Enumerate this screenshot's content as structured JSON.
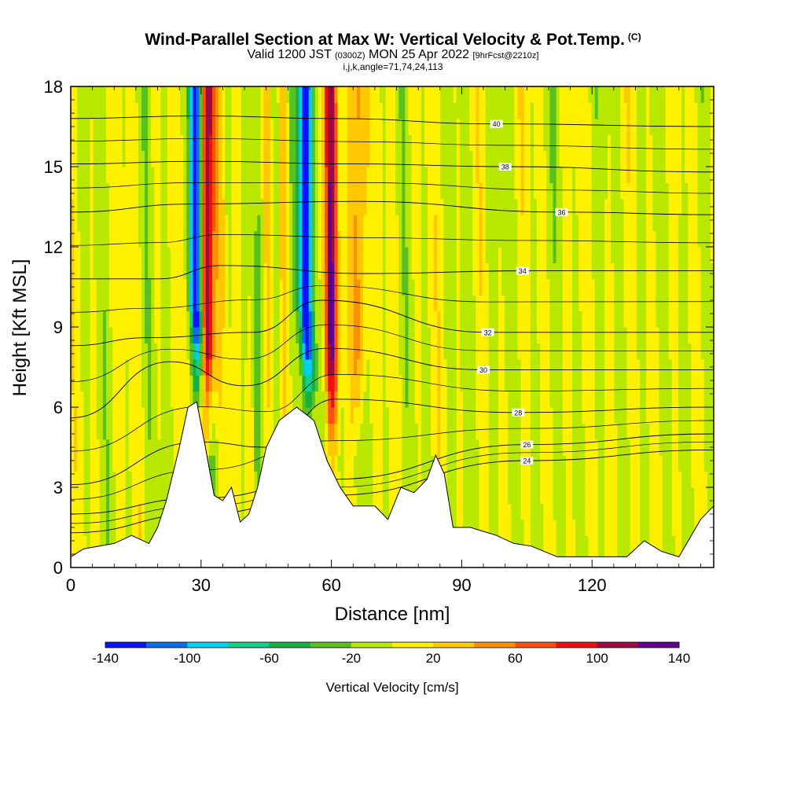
{
  "header": {
    "title": "Wind-Parallel Section at Max W: Vertical Velocity & Pot.Temp.",
    "title_tag": "(C)",
    "valid_prefix": "Valid 1200 JST",
    "valid_utc": "(0300Z)",
    "valid_date": "MON 25 Apr 2022",
    "forecast_tag": "[9hrFcst@2210z]",
    "indices": "i,j,k,angle=71,74,24,113"
  },
  "chart_data": {
    "type": "heatmap",
    "xlabel": "Distance [nm]",
    "ylabel": "Height [Kft MSL]",
    "xlim": [
      0,
      148
    ],
    "ylim": [
      0,
      18
    ],
    "x_ticks": [
      "0",
      "30",
      "60",
      "90",
      "120"
    ],
    "y_ticks": [
      "0",
      "3",
      "6",
      "9",
      "12",
      "15",
      "18"
    ],
    "colorbar": {
      "title": "Vertical Velocity [cm/s]",
      "tick_labels": [
        "-140",
        "-100",
        "-60",
        "-20",
        "20",
        "60",
        "100",
        "140"
      ],
      "range": [
        -140,
        140
      ],
      "colors": [
        "#0a14ff",
        "#0a6ee8",
        "#00d0f5",
        "#10d08a",
        "#18b040",
        "#5ac020",
        "#b8e800",
        "#fff000",
        "#ffc800",
        "#ff9000",
        "#ff5010",
        "#f01010",
        "#a00a40",
        "#600090"
      ]
    },
    "updraft_cores": [
      {
        "name": "",
        "x": 31.5,
        "w_peak": 140
      },
      {
        "name": "",
        "x": 60,
        "w_peak": 100
      },
      {
        "name": "",
        "x": 66,
        "w_peak": 60
      }
    ],
    "downdraft_cores": [
      {
        "name": "",
        "x": 29,
        "w_peak": -140
      },
      {
        "name": "",
        "x": 54,
        "w_peak": -140
      }
    ],
    "terrain": [
      [
        0,
        0.4
      ],
      [
        3,
        0.7
      ],
      [
        10,
        0.9
      ],
      [
        14,
        1.2
      ],
      [
        18,
        0.9
      ],
      [
        20,
        1.5
      ],
      [
        22,
        2.5
      ],
      [
        25,
        4.5
      ],
      [
        27,
        6.0
      ],
      [
        29,
        6.2
      ],
      [
        31,
        4.5
      ],
      [
        33,
        2.7
      ],
      [
        35,
        2.5
      ],
      [
        37,
        3.0
      ],
      [
        39,
        1.7
      ],
      [
        41,
        2.0
      ],
      [
        43,
        3.0
      ],
      [
        45,
        4.5
      ],
      [
        48,
        5.5
      ],
      [
        52,
        6.0
      ],
      [
        56,
        5.5
      ],
      [
        59,
        4.0
      ],
      [
        62,
        3.0
      ],
      [
        65,
        2.3
      ],
      [
        70,
        2.3
      ],
      [
        73,
        1.8
      ],
      [
        76,
        3.0
      ],
      [
        79,
        2.8
      ],
      [
        82,
        3.3
      ],
      [
        84,
        4.2
      ],
      [
        86,
        3.5
      ],
      [
        88,
        1.5
      ],
      [
        92,
        1.5
      ],
      [
        98,
        1.2
      ],
      [
        102,
        0.9
      ],
      [
        106,
        0.8
      ],
      [
        112,
        0.4
      ],
      [
        128,
        0.4
      ],
      [
        132,
        1.0
      ],
      [
        136,
        0.6
      ],
      [
        140,
        0.4
      ],
      [
        145,
        1.8
      ],
      [
        148,
        2.3
      ]
    ],
    "contours": [
      {
        "label": "24",
        "label_x": 105,
        "levels": [
          [
            0,
            1.3
          ],
          [
            30,
            2.0
          ],
          [
            60,
            2.7
          ],
          [
            105,
            4.0
          ],
          [
            148,
            4.4
          ]
        ]
      },
      {
        "label": "26",
        "label_x": 105,
        "levels": [
          [
            0,
            2.0
          ],
          [
            30,
            2.6
          ],
          [
            60,
            3.3
          ],
          [
            105,
            4.6
          ],
          [
            148,
            5.0
          ]
        ]
      },
      {
        "label": "28",
        "label_x": 103,
        "levels": [
          [
            0,
            3.1
          ],
          [
            30,
            4.7
          ],
          [
            45,
            4.5
          ],
          [
            61,
            6.3
          ],
          [
            103,
            5.8
          ],
          [
            148,
            6.0
          ]
        ]
      },
      {
        "label": "30",
        "label_x": 95,
        "levels": [
          [
            0,
            5.6
          ],
          [
            23,
            7.7
          ],
          [
            40,
            6.8
          ],
          [
            59,
            8.2
          ],
          [
            95,
            7.4
          ],
          [
            148,
            7.4
          ]
        ]
      },
      {
        "label": "32",
        "label_x": 96,
        "levels": [
          [
            0,
            8.3
          ],
          [
            18,
            8.6
          ],
          [
            42,
            8.8
          ],
          [
            58,
            10.0
          ],
          [
            96,
            8.8
          ],
          [
            148,
            8.8
          ]
        ]
      },
      {
        "label": "34",
        "label_x": 104,
        "levels": [
          [
            0,
            10.8
          ],
          [
            20,
            10.8
          ],
          [
            35,
            11.3
          ],
          [
            68,
            11.0
          ],
          [
            104,
            11.1
          ],
          [
            148,
            11.1
          ]
        ]
      },
      {
        "label": "36",
        "label_x": 113,
        "levels": [
          [
            0,
            13.3
          ],
          [
            28,
            13.6
          ],
          [
            66,
            13.7
          ],
          [
            113,
            13.3
          ],
          [
            148,
            13.2
          ]
        ]
      },
      {
        "label": "38",
        "label_x": 100,
        "levels": [
          [
            0,
            15.1
          ],
          [
            30,
            15.2
          ],
          [
            66,
            15.1
          ],
          [
            100,
            15.0
          ],
          [
            148,
            14.8
          ]
        ]
      },
      {
        "label": "40",
        "label_x": 98,
        "levels": [
          [
            0,
            16.8
          ],
          [
            30,
            16.9
          ],
          [
            60,
            16.8
          ],
          [
            98,
            16.6
          ],
          [
            148,
            16.5
          ]
        ]
      }
    ]
  }
}
